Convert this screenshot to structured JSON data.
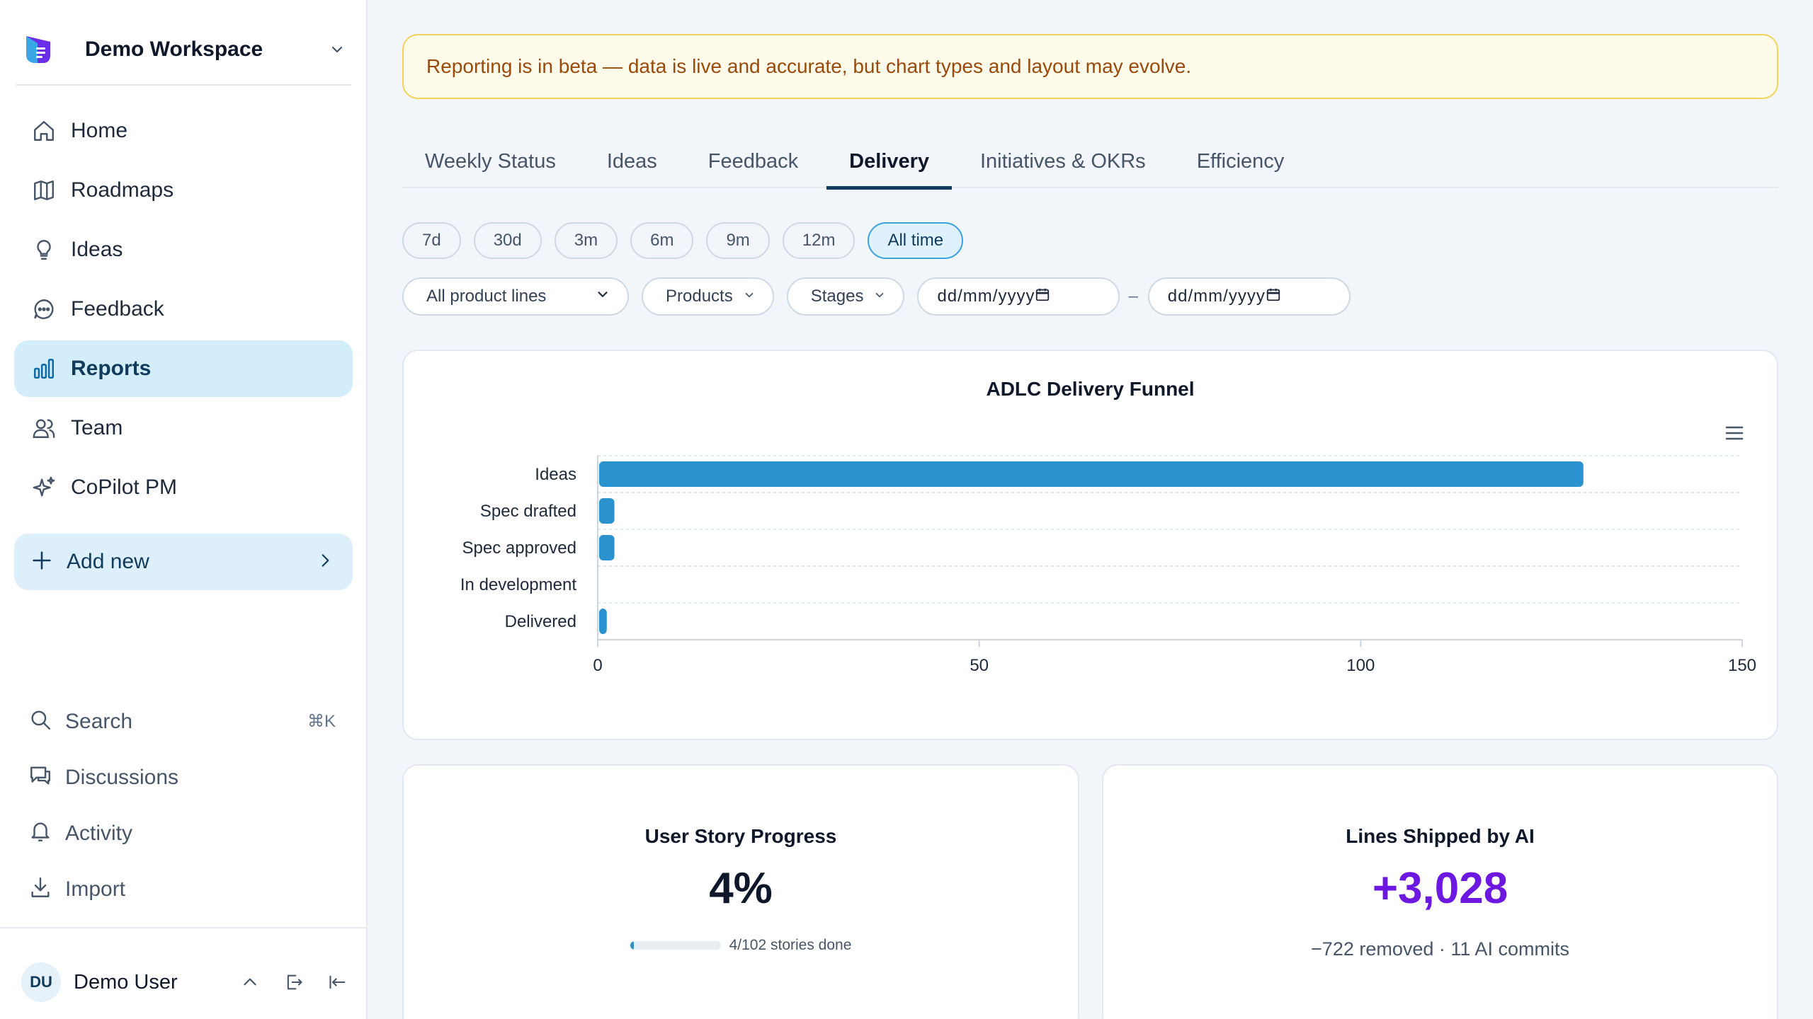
{
  "workspace": {
    "name": "Demo Workspace"
  },
  "nav": {
    "items": [
      {
        "label": "Home",
        "icon": "home-icon"
      },
      {
        "label": "Roadmaps",
        "icon": "map-icon"
      },
      {
        "label": "Ideas",
        "icon": "lightbulb-icon"
      },
      {
        "label": "Feedback",
        "icon": "chat-bubble-icon"
      },
      {
        "label": "Reports",
        "icon": "bar-chart-icon",
        "active": true
      },
      {
        "label": "Team",
        "icon": "users-icon"
      },
      {
        "label": "CoPilot PM",
        "icon": "sparkles-icon"
      }
    ],
    "add_new": "Add new"
  },
  "bottom_nav": {
    "search": {
      "label": "Search",
      "shortcut": "⌘K"
    },
    "discussions": "Discussions",
    "activity": "Activity",
    "import": "Import"
  },
  "user": {
    "initials": "DU",
    "name": "Demo User"
  },
  "banner": {
    "text": "Reporting is in beta — data is live and accurate, but chart types and layout may evolve."
  },
  "tabs": [
    "Weekly Status",
    "Ideas",
    "Feedback",
    "Delivery",
    "Initiatives & OKRs",
    "Efficiency"
  ],
  "active_tab": "Delivery",
  "ranges": [
    "7d",
    "30d",
    "3m",
    "6m",
    "9m",
    "12m",
    "All time"
  ],
  "active_range": "All time",
  "filters": {
    "product_lines": "All product lines",
    "products": "Products",
    "stages": "Stages",
    "date_from_placeholder": "dd/mm/yyyy",
    "date_separator": "–",
    "date_to_placeholder": "dd/mm/yyyy"
  },
  "colors": {
    "bar": "#2992cf",
    "accent": "#0f3b5c",
    "purple": "#6d18e0",
    "banner_text": "#9a4a0b"
  },
  "chart_data": {
    "type": "bar",
    "orientation": "horizontal",
    "title": "ADLC Delivery Funnel",
    "categories": [
      "Ideas",
      "Spec drafted",
      "Spec approved",
      "In development",
      "Delivered"
    ],
    "values": [
      129,
      2,
      2,
      0,
      1
    ],
    "xlim": [
      0,
      150
    ],
    "xticks": [
      0,
      50,
      100,
      150
    ],
    "grid": true,
    "legend": "none"
  },
  "stats": {
    "user_story": {
      "title": "User Story Progress",
      "value": "4%",
      "progress": 0.04,
      "caption": "4/102 stories done"
    },
    "lines_ai": {
      "title": "Lines Shipped by AI",
      "value": "+3,028",
      "caption": "−722 removed · 11 AI commits"
    }
  }
}
